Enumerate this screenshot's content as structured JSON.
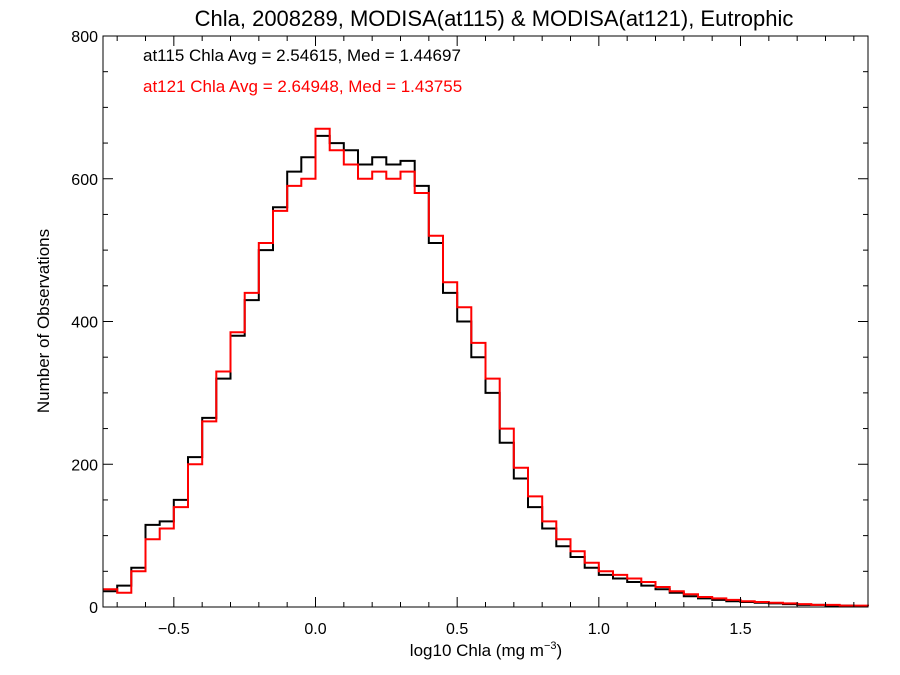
{
  "chart_data": {
    "type": "line",
    "step": true,
    "title": "Chla, 2008289, MODISA(at115) & MODISA(at121), Eutrophic",
    "xlabel_base": "log10 Chla (mg m",
    "xlabel_exp": "−3",
    "xlabel_close": ")",
    "ylabel": "Number of Observations",
    "xlim": [
      -0.75,
      1.95
    ],
    "ylim": [
      0,
      800
    ],
    "xticks": [
      -0.5,
      0.0,
      0.5,
      1.0,
      1.5
    ],
    "xtick_labels": [
      "−0.5",
      "0.0",
      "0.5",
      "1.0",
      "1.5"
    ],
    "yticks": [
      0,
      200,
      400,
      600,
      800
    ],
    "ytick_labels": [
      "0",
      "200",
      "400",
      "600",
      "800"
    ],
    "grid": false,
    "annotations": [
      {
        "text": "at115 Chla Avg = 2.54615, Med = 1.44697",
        "color": "#000000"
      },
      {
        "text": "at121 Chla Avg = 2.64948, Med = 1.43755",
        "color": "#ff0000"
      }
    ],
    "series": [
      {
        "color": "#000000",
        "x": [
          -0.75,
          -0.7,
          -0.65,
          -0.6,
          -0.55,
          -0.5,
          -0.45,
          -0.4,
          -0.35,
          -0.3,
          -0.25,
          -0.2,
          -0.15,
          -0.1,
          -0.05,
          0.0,
          0.05,
          0.1,
          0.15,
          0.2,
          0.25,
          0.3,
          0.35,
          0.4,
          0.45,
          0.5,
          0.55,
          0.6,
          0.65,
          0.7,
          0.75,
          0.8,
          0.85,
          0.9,
          0.95,
          1.0,
          1.05,
          1.1,
          1.15,
          1.2,
          1.25,
          1.3,
          1.35,
          1.4,
          1.45,
          1.5,
          1.55,
          1.6,
          1.65,
          1.7,
          1.75,
          1.8,
          1.85,
          1.9,
          1.95
        ],
        "y": [
          22,
          30,
          55,
          115,
          120,
          150,
          210,
          265,
          320,
          380,
          430,
          500,
          560,
          610,
          630,
          660,
          650,
          640,
          620,
          630,
          620,
          625,
          590,
          510,
          440,
          400,
          350,
          300,
          230,
          180,
          140,
          110,
          85,
          70,
          55,
          45,
          40,
          35,
          30,
          25,
          20,
          15,
          12,
          10,
          8,
          7,
          6,
          5,
          4,
          3,
          3,
          2,
          2,
          1,
          1
        ]
      },
      {
        "color": "#ff0000",
        "x": [
          -0.75,
          -0.7,
          -0.65,
          -0.6,
          -0.55,
          -0.5,
          -0.45,
          -0.4,
          -0.35,
          -0.3,
          -0.25,
          -0.2,
          -0.15,
          -0.1,
          -0.05,
          0.0,
          0.05,
          0.1,
          0.15,
          0.2,
          0.25,
          0.3,
          0.35,
          0.4,
          0.45,
          0.5,
          0.55,
          0.6,
          0.65,
          0.7,
          0.75,
          0.8,
          0.85,
          0.9,
          0.95,
          1.0,
          1.05,
          1.1,
          1.15,
          1.2,
          1.25,
          1.3,
          1.35,
          1.4,
          1.45,
          1.5,
          1.55,
          1.6,
          1.65,
          1.7,
          1.75,
          1.8,
          1.85,
          1.9,
          1.95
        ],
        "y": [
          25,
          20,
          50,
          95,
          110,
          140,
          200,
          260,
          330,
          385,
          440,
          510,
          555,
          590,
          600,
          670,
          640,
          620,
          600,
          610,
          600,
          610,
          580,
          520,
          455,
          420,
          370,
          320,
          250,
          195,
          155,
          120,
          95,
          78,
          62,
          50,
          45,
          40,
          35,
          28,
          22,
          18,
          14,
          12,
          10,
          8,
          7,
          6,
          5,
          4,
          3,
          3,
          2,
          2,
          1
        ]
      }
    ]
  }
}
